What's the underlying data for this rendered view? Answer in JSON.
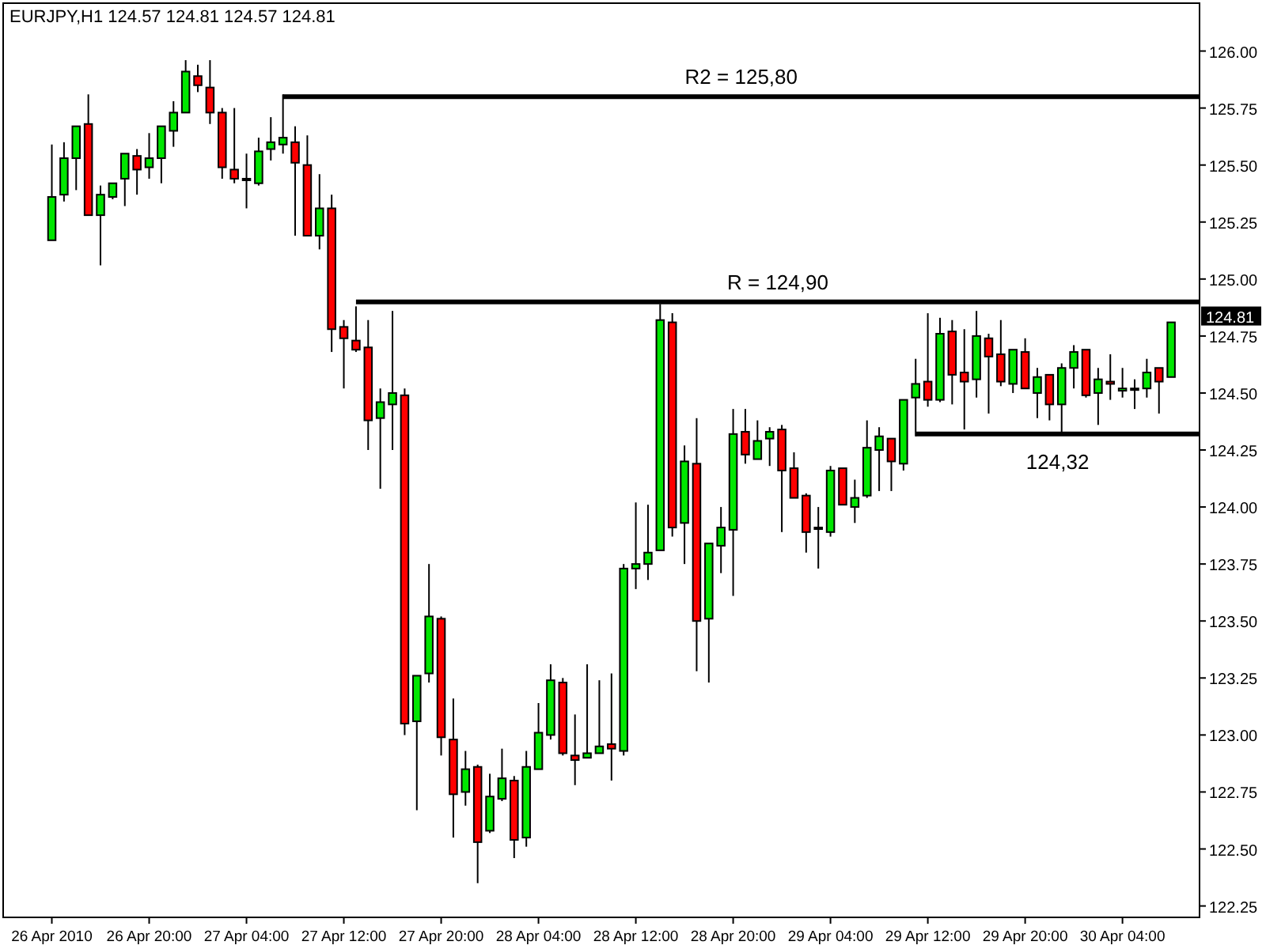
{
  "chart_data": {
    "type": "candlestick",
    "title": "EURJPY,H1  124.57 124.81 124.57 124.81",
    "x": [
      "2010-04-26T12:00",
      "2010-04-26T13:00",
      "2010-04-26T14:00",
      "2010-04-26T15:00",
      "2010-04-26T16:00",
      "2010-04-26T17:00",
      "2010-04-26T18:00",
      "2010-04-26T19:00",
      "2010-04-26T20:00",
      "2010-04-26T21:00",
      "2010-04-26T22:00",
      "2010-04-26T23:00",
      "2010-04-27T00:00",
      "2010-04-27T01:00",
      "2010-04-27T02:00",
      "2010-04-27T03:00",
      "2010-04-27T04:00",
      "2010-04-27T05:00",
      "2010-04-27T06:00",
      "2010-04-27T07:00",
      "2010-04-27T08:00",
      "2010-04-27T09:00",
      "2010-04-27T10:00",
      "2010-04-27T11:00",
      "2010-04-27T12:00",
      "2010-04-27T13:00",
      "2010-04-27T14:00",
      "2010-04-27T15:00",
      "2010-04-27T16:00",
      "2010-04-27T17:00",
      "2010-04-27T18:00",
      "2010-04-27T19:00",
      "2010-04-27T20:00",
      "2010-04-27T21:00",
      "2010-04-27T22:00",
      "2010-04-27T23:00",
      "2010-04-28T00:00",
      "2010-04-28T01:00",
      "2010-04-28T02:00",
      "2010-04-28T03:00",
      "2010-04-28T04:00",
      "2010-04-28T05:00",
      "2010-04-28T06:00",
      "2010-04-28T07:00",
      "2010-04-28T08:00",
      "2010-04-28T09:00",
      "2010-04-28T10:00",
      "2010-04-28T11:00",
      "2010-04-28T12:00",
      "2010-04-28T13:00",
      "2010-04-28T14:00",
      "2010-04-28T15:00",
      "2010-04-28T16:00",
      "2010-04-28T17:00",
      "2010-04-28T18:00",
      "2010-04-28T19:00",
      "2010-04-28T20:00",
      "2010-04-28T21:00",
      "2010-04-28T22:00",
      "2010-04-28T23:00",
      "2010-04-29T00:00",
      "2010-04-29T01:00",
      "2010-04-29T02:00",
      "2010-04-29T03:00",
      "2010-04-29T04:00",
      "2010-04-29T05:00",
      "2010-04-29T06:00",
      "2010-04-29T07:00",
      "2010-04-29T08:00",
      "2010-04-29T09:00",
      "2010-04-29T10:00",
      "2010-04-29T11:00",
      "2010-04-29T12:00",
      "2010-04-29T13:00",
      "2010-04-29T14:00",
      "2010-04-29T15:00",
      "2010-04-29T16:00",
      "2010-04-29T17:00",
      "2010-04-29T18:00",
      "2010-04-29T19:00",
      "2010-04-29T20:00",
      "2010-04-29T21:00",
      "2010-04-29T22:00",
      "2010-04-29T23:00",
      "2010-04-30T00:00",
      "2010-04-30T01:00",
      "2010-04-30T02:00",
      "2010-04-30T03:00",
      "2010-04-30T04:00",
      "2010-04-30T05:00",
      "2010-04-30T06:00",
      "2010-04-30T07:00",
      "2010-04-30T08:00"
    ],
    "ohlc": [
      [
        125.17,
        125.59,
        125.17,
        125.36
      ],
      [
        125.37,
        125.6,
        125.34,
        125.53
      ],
      [
        125.53,
        125.67,
        125.39,
        125.67
      ],
      [
        125.68,
        125.81,
        125.28,
        125.28
      ],
      [
        125.28,
        125.41,
        125.06,
        125.37
      ],
      [
        125.36,
        125.42,
        125.35,
        125.42
      ],
      [
        125.44,
        125.55,
        125.32,
        125.55
      ],
      [
        125.54,
        125.57,
        125.37,
        125.48
      ],
      [
        125.49,
        125.64,
        125.44,
        125.53
      ],
      [
        125.53,
        125.67,
        125.42,
        125.67
      ],
      [
        125.65,
        125.78,
        125.58,
        125.73
      ],
      [
        125.73,
        125.96,
        125.73,
        125.91
      ],
      [
        125.89,
        125.94,
        125.82,
        125.85
      ],
      [
        125.84,
        125.96,
        125.68,
        125.73
      ],
      [
        125.73,
        125.75,
        125.44,
        125.49
      ],
      [
        125.48,
        125.75,
        125.42,
        125.44
      ],
      [
        125.44,
        125.55,
        125.31,
        125.44
      ],
      [
        125.42,
        125.62,
        125.41,
        125.56
      ],
      [
        125.57,
        125.71,
        125.52,
        125.6
      ],
      [
        125.59,
        125.81,
        125.55,
        125.62
      ],
      [
        125.6,
        125.67,
        125.19,
        125.51
      ],
      [
        125.5,
        125.63,
        125.19,
        125.19
      ],
      [
        125.19,
        125.46,
        125.13,
        125.31
      ],
      [
        125.31,
        125.37,
        124.68,
        124.78
      ],
      [
        124.79,
        124.82,
        124.52,
        124.74
      ],
      [
        124.73,
        124.88,
        124.68,
        124.69
      ],
      [
        124.7,
        124.82,
        124.25,
        124.38
      ],
      [
        124.39,
        124.52,
        124.08,
        124.46
      ],
      [
        124.45,
        124.86,
        124.25,
        124.5
      ],
      [
        124.49,
        124.52,
        123.0,
        123.05
      ],
      [
        123.06,
        123.26,
        122.67,
        123.26
      ],
      [
        123.27,
        123.75,
        123.23,
        123.52
      ],
      [
        123.51,
        123.52,
        122.91,
        122.99
      ],
      [
        122.98,
        123.16,
        122.55,
        122.74
      ],
      [
        122.75,
        122.93,
        122.69,
        122.85
      ],
      [
        122.86,
        122.87,
        122.35,
        122.53
      ],
      [
        122.58,
        122.83,
        122.57,
        122.73
      ],
      [
        122.72,
        122.94,
        122.71,
        122.81
      ],
      [
        122.8,
        122.82,
        122.46,
        122.54
      ],
      [
        122.55,
        122.93,
        122.51,
        122.86
      ],
      [
        122.85,
        123.14,
        122.85,
        123.01
      ],
      [
        123.0,
        123.31,
        122.98,
        123.24
      ],
      [
        123.23,
        123.25,
        122.91,
        122.92
      ],
      [
        122.91,
        123.09,
        122.78,
        122.89
      ],
      [
        122.9,
        123.31,
        122.9,
        122.92
      ],
      [
        122.92,
        123.24,
        122.92,
        122.95
      ],
      [
        122.96,
        123.27,
        122.8,
        122.94
      ],
      [
        122.93,
        123.75,
        122.91,
        123.73
      ],
      [
        123.73,
        124.02,
        123.64,
        123.75
      ],
      [
        123.75,
        124.01,
        123.68,
        123.8
      ],
      [
        123.81,
        124.89,
        123.81,
        124.82
      ],
      [
        124.81,
        124.85,
        123.87,
        123.91
      ],
      [
        123.93,
        124.27,
        123.75,
        124.2
      ],
      [
        124.19,
        124.39,
        123.28,
        123.5
      ],
      [
        123.51,
        123.84,
        123.23,
        123.84
      ],
      [
        123.83,
        124.0,
        123.71,
        123.91
      ],
      [
        123.9,
        124.43,
        123.61,
        124.32
      ],
      [
        124.33,
        124.43,
        124.19,
        124.23
      ],
      [
        124.21,
        124.38,
        124.21,
        124.29
      ],
      [
        124.3,
        124.35,
        124.18,
        124.33
      ],
      [
        124.34,
        124.36,
        123.89,
        124.16
      ],
      [
        124.17,
        124.24,
        124.04,
        124.04
      ],
      [
        124.05,
        124.06,
        123.8,
        123.89
      ],
      [
        123.91,
        124.0,
        123.73,
        123.91
      ],
      [
        123.89,
        124.18,
        123.87,
        124.16
      ],
      [
        124.17,
        124.17,
        124.01,
        124.01
      ],
      [
        124.0,
        124.12,
        123.93,
        124.04
      ],
      [
        124.05,
        124.38,
        124.04,
        124.26
      ],
      [
        124.25,
        124.35,
        124.07,
        124.31
      ],
      [
        124.3,
        124.3,
        124.07,
        124.2
      ],
      [
        124.19,
        124.47,
        124.16,
        124.47
      ],
      [
        124.48,
        124.65,
        124.31,
        124.54
      ],
      [
        124.55,
        124.85,
        124.44,
        124.47
      ],
      [
        124.47,
        124.83,
        124.46,
        124.76
      ],
      [
        124.77,
        124.82,
        124.45,
        124.58
      ],
      [
        124.59,
        124.78,
        124.34,
        124.55
      ],
      [
        124.56,
        124.86,
        124.48,
        124.75
      ],
      [
        124.74,
        124.76,
        124.41,
        124.66
      ],
      [
        124.67,
        124.82,
        124.53,
        124.55
      ],
      [
        124.54,
        124.69,
        124.5,
        124.69
      ],
      [
        124.68,
        124.74,
        124.52,
        124.52
      ],
      [
        124.5,
        124.61,
        124.39,
        124.57
      ],
      [
        124.58,
        124.58,
        124.38,
        124.45
      ],
      [
        124.45,
        124.63,
        124.32,
        124.61
      ],
      [
        124.61,
        124.71,
        124.52,
        124.68
      ],
      [
        124.69,
        124.69,
        124.48,
        124.49
      ],
      [
        124.5,
        124.61,
        124.36,
        124.56
      ],
      [
        124.55,
        124.67,
        124.47,
        124.54
      ],
      [
        124.51,
        124.61,
        124.48,
        124.52
      ],
      [
        124.52,
        124.56,
        124.43,
        124.52
      ],
      [
        124.52,
        124.65,
        124.48,
        124.59
      ],
      [
        124.61,
        124.61,
        124.41,
        124.55
      ],
      [
        124.57,
        124.81,
        124.57,
        124.81
      ]
    ],
    "series": [
      {
        "type": "line",
        "name": "R2 = 125,80",
        "color": "#000000",
        "x": [
          "2010-04-27T07:00",
          "2010-04-30T10:20"
        ],
        "values": [
          125.8,
          125.8
        ]
      },
      {
        "type": "line",
        "name": "R = 124,90",
        "color": "#000000",
        "x": [
          "2010-04-27T13:00",
          "2010-04-30T10:20"
        ],
        "values": [
          124.9,
          124.9
        ]
      },
      {
        "type": "line",
        "name": "124,32",
        "color": "#000000",
        "x": [
          "2010-04-29T11:00",
          "2010-04-30T10:20"
        ],
        "values": [
          124.32,
          124.32
        ]
      }
    ],
    "annotations": [
      "124.81"
    ],
    "xlim": [
      "2010-04-26T08:00",
      "2010-04-30T10:20"
    ],
    "xticks": [
      {
        "value": "2010-04-26T12:00",
        "label": "26 Apr 2010"
      },
      {
        "value": "2010-04-26T20:00",
        "label": "26 Apr 20:00"
      },
      {
        "value": "2010-04-27T04:00",
        "label": "27 Apr 04:00"
      },
      {
        "value": "2010-04-27T12:00",
        "label": "27 Apr 12:00"
      },
      {
        "value": "2010-04-27T20:00",
        "label": "27 Apr 20:00"
      },
      {
        "value": "2010-04-28T04:00",
        "label": "28 Apr 04:00"
      },
      {
        "value": "2010-04-28T12:00",
        "label": "28 Apr 12:00"
      },
      {
        "value": "2010-04-28T20:00",
        "label": "28 Apr 20:00"
      },
      {
        "value": "2010-04-29T04:00",
        "label": "29 Apr 04:00"
      },
      {
        "value": "2010-04-29T12:00",
        "label": "29 Apr 12:00"
      },
      {
        "value": "2010-04-29T20:00",
        "label": "29 Apr 20:00"
      },
      {
        "value": "2010-04-30T04:00",
        "label": "30 Apr 04:00"
      }
    ],
    "ylim": [
      122.2,
      126.21
    ],
    "yticks": [
      {
        "value": 122.25,
        "label": "122.25"
      },
      {
        "value": 122.5,
        "label": "122.50"
      },
      {
        "value": 122.75,
        "label": "122.75"
      },
      {
        "value": 123,
        "label": "123.00"
      },
      {
        "value": 123.25,
        "label": "123.25"
      },
      {
        "value": 123.5,
        "label": "123.50"
      },
      {
        "value": 123.75,
        "label": "123.75"
      },
      {
        "value": 124,
        "label": "124.00"
      },
      {
        "value": 124.25,
        "label": "124.25"
      },
      {
        "value": 124.5,
        "label": "124.50"
      },
      {
        "value": 124.75,
        "label": "124.75"
      },
      {
        "value": 125,
        "label": "125.00"
      },
      {
        "value": 125.25,
        "label": "125.25"
      },
      {
        "value": 125.5,
        "label": "125.50"
      },
      {
        "value": 125.75,
        "label": "125.75"
      },
      {
        "value": 126,
        "label": "126.00"
      }
    ],
    "grid": false
  }
}
